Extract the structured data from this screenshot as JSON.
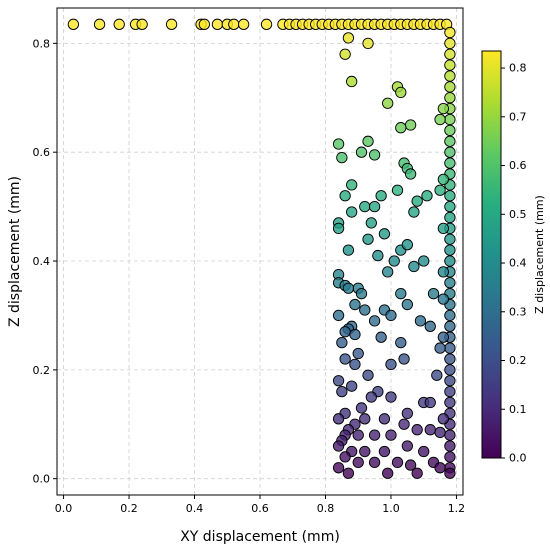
{
  "chart_data": {
    "type": "scatter",
    "title": "",
    "xlabel": "XY displacement (mm)",
    "ylabel": "Z displacement (mm)",
    "xlim": [
      -0.02,
      1.22
    ],
    "ylim": [
      -0.03,
      0.865
    ],
    "grid": true,
    "x_ticks": [
      0.0,
      0.2,
      0.4,
      0.6,
      0.8,
      1.0,
      1.2
    ],
    "y_ticks": [
      0.0,
      0.2,
      0.4,
      0.6,
      0.8
    ],
    "x_tick_labels": [
      "0.0",
      "0.2",
      "0.4",
      "0.6",
      "0.8",
      "1.0",
      "1.2"
    ],
    "y_tick_labels": [
      "0.0",
      "0.2",
      "0.4",
      "0.6",
      "0.8"
    ],
    "colormap": "viridis",
    "marker_edge_color": "#000000",
    "colorbar": {
      "label": "Z displacement (mm)",
      "range": [
        0.0,
        0.835
      ],
      "ticks": [
        0.0,
        0.1,
        0.2,
        0.3,
        0.4,
        0.5,
        0.6,
        0.7,
        0.8
      ],
      "tick_labels": [
        "0.0",
        "0.1",
        "0.2",
        "0.3",
        "0.4",
        "0.5",
        "0.6",
        "0.7",
        "0.8"
      ]
    },
    "points": [
      [
        0.03,
        0.835
      ],
      [
        0.11,
        0.835
      ],
      [
        0.17,
        0.835
      ],
      [
        0.22,
        0.835
      ],
      [
        0.24,
        0.835
      ],
      [
        0.33,
        0.835
      ],
      [
        0.42,
        0.835
      ],
      [
        0.43,
        0.835
      ],
      [
        0.47,
        0.835
      ],
      [
        0.5,
        0.835
      ],
      [
        0.52,
        0.835
      ],
      [
        0.55,
        0.835
      ],
      [
        0.62,
        0.835
      ],
      [
        0.67,
        0.835
      ],
      [
        0.69,
        0.835
      ],
      [
        0.71,
        0.835
      ],
      [
        0.73,
        0.835
      ],
      [
        0.75,
        0.835
      ],
      [
        0.77,
        0.835
      ],
      [
        0.79,
        0.835
      ],
      [
        0.81,
        0.835
      ],
      [
        0.83,
        0.835
      ],
      [
        0.85,
        0.835
      ],
      [
        0.87,
        0.835
      ],
      [
        0.89,
        0.835
      ],
      [
        0.91,
        0.835
      ],
      [
        0.93,
        0.835
      ],
      [
        0.95,
        0.835
      ],
      [
        0.97,
        0.835
      ],
      [
        0.99,
        0.835
      ],
      [
        1.01,
        0.835
      ],
      [
        1.03,
        0.835
      ],
      [
        1.05,
        0.835
      ],
      [
        1.07,
        0.835
      ],
      [
        1.09,
        0.835
      ],
      [
        1.11,
        0.835
      ],
      [
        1.13,
        0.835
      ],
      [
        1.15,
        0.835
      ],
      [
        1.17,
        0.835
      ],
      [
        1.18,
        0.82
      ],
      [
        1.18,
        0.8
      ],
      [
        1.18,
        0.78
      ],
      [
        1.18,
        0.76
      ],
      [
        1.18,
        0.74
      ],
      [
        1.18,
        0.72
      ],
      [
        1.18,
        0.7
      ],
      [
        1.18,
        0.68
      ],
      [
        1.18,
        0.66
      ],
      [
        1.18,
        0.64
      ],
      [
        1.18,
        0.62
      ],
      [
        1.18,
        0.6
      ],
      [
        1.18,
        0.58
      ],
      [
        1.18,
        0.56
      ],
      [
        1.18,
        0.54
      ],
      [
        1.18,
        0.52
      ],
      [
        1.18,
        0.5
      ],
      [
        1.18,
        0.48
      ],
      [
        1.18,
        0.46
      ],
      [
        1.18,
        0.44
      ],
      [
        1.18,
        0.42
      ],
      [
        1.18,
        0.4
      ],
      [
        1.18,
        0.38
      ],
      [
        1.18,
        0.36
      ],
      [
        1.18,
        0.34
      ],
      [
        1.18,
        0.32
      ],
      [
        1.18,
        0.3
      ],
      [
        1.18,
        0.28
      ],
      [
        1.18,
        0.26
      ],
      [
        1.18,
        0.24
      ],
      [
        1.18,
        0.22
      ],
      [
        1.18,
        0.2
      ],
      [
        1.18,
        0.18
      ],
      [
        1.18,
        0.16
      ],
      [
        1.18,
        0.14
      ],
      [
        1.18,
        0.12
      ],
      [
        1.18,
        0.1
      ],
      [
        1.18,
        0.08
      ],
      [
        1.18,
        0.06
      ],
      [
        1.18,
        0.04
      ],
      [
        1.18,
        0.02
      ],
      [
        1.18,
        0.01
      ],
      [
        0.87,
        0.81
      ],
      [
        0.93,
        0.8
      ],
      [
        0.86,
        0.78
      ],
      [
        0.88,
        0.73
      ],
      [
        1.02,
        0.72
      ],
      [
        1.03,
        0.71
      ],
      [
        0.99,
        0.69
      ],
      [
        1.16,
        0.68
      ],
      [
        1.15,
        0.66
      ],
      [
        1.06,
        0.65
      ],
      [
        1.03,
        0.645
      ],
      [
        0.84,
        0.615
      ],
      [
        0.93,
        0.62
      ],
      [
        0.91,
        0.6
      ],
      [
        0.95,
        0.595
      ],
      [
        0.85,
        0.59
      ],
      [
        1.04,
        0.58
      ],
      [
        1.05,
        0.57
      ],
      [
        1.06,
        0.56
      ],
      [
        1.16,
        0.55
      ],
      [
        0.88,
        0.54
      ],
      [
        1.02,
        0.53
      ],
      [
        1.15,
        0.53
      ],
      [
        0.86,
        0.52
      ],
      [
        0.97,
        0.52
      ],
      [
        1.11,
        0.52
      ],
      [
        1.08,
        0.51
      ],
      [
        0.92,
        0.5
      ],
      [
        0.95,
        0.5
      ],
      [
        0.88,
        0.49
      ],
      [
        1.07,
        0.49
      ],
      [
        0.84,
        0.47
      ],
      [
        0.94,
        0.47
      ],
      [
        0.84,
        0.46
      ],
      [
        0.98,
        0.45
      ],
      [
        1.16,
        0.46
      ],
      [
        0.87,
        0.42
      ],
      [
        1.03,
        0.42
      ],
      [
        0.93,
        0.44
      ],
      [
        1.05,
        0.43
      ],
      [
        0.96,
        0.41
      ],
      [
        1.01,
        0.4
      ],
      [
        1.1,
        0.4
      ],
      [
        1.07,
        0.39
      ],
      [
        0.99,
        0.38
      ],
      [
        1.16,
        0.38
      ],
      [
        0.84,
        0.375
      ],
      [
        0.9,
        0.35
      ],
      [
        0.84,
        0.36
      ],
      [
        0.86,
        0.355
      ],
      [
        0.87,
        0.35
      ],
      [
        0.91,
        0.34
      ],
      [
        1.13,
        0.34
      ],
      [
        1.03,
        0.34
      ],
      [
        0.89,
        0.32
      ],
      [
        1.16,
        0.33
      ],
      [
        0.92,
        0.31
      ],
      [
        0.98,
        0.31
      ],
      [
        1.05,
        0.32
      ],
      [
        1.0,
        0.3
      ],
      [
        0.84,
        0.3
      ],
      [
        0.88,
        0.28
      ],
      [
        0.95,
        0.29
      ],
      [
        0.87,
        0.275
      ],
      [
        0.86,
        0.27
      ],
      [
        0.89,
        0.265
      ],
      [
        1.09,
        0.29
      ],
      [
        1.12,
        0.28
      ],
      [
        0.97,
        0.26
      ],
      [
        0.85,
        0.25
      ],
      [
        1.03,
        0.25
      ],
      [
        1.16,
        0.26
      ],
      [
        1.15,
        0.24
      ],
      [
        0.9,
        0.23
      ],
      [
        0.86,
        0.22
      ],
      [
        1.0,
        0.21
      ],
      [
        0.89,
        0.21
      ],
      [
        1.04,
        0.22
      ],
      [
        0.93,
        0.19
      ],
      [
        1.14,
        0.19
      ],
      [
        0.84,
        0.18
      ],
      [
        0.88,
        0.17
      ],
      [
        0.85,
        0.16
      ],
      [
        0.96,
        0.16
      ],
      [
        0.94,
        0.15
      ],
      [
        1.0,
        0.15
      ],
      [
        1.1,
        0.14
      ],
      [
        1.12,
        0.14
      ],
      [
        0.91,
        0.13
      ],
      [
        0.86,
        0.12
      ],
      [
        0.84,
        0.11
      ],
      [
        0.92,
        0.11
      ],
      [
        0.98,
        0.11
      ],
      [
        1.05,
        0.12
      ],
      [
        1.16,
        0.11
      ],
      [
        0.89,
        0.1
      ],
      [
        1.04,
        0.1
      ],
      [
        1.12,
        0.09
      ],
      [
        0.87,
        0.09
      ],
      [
        0.86,
        0.08
      ],
      [
        0.85,
        0.07
      ],
      [
        0.9,
        0.08
      ],
      [
        0.95,
        0.08
      ],
      [
        1.0,
        0.08
      ],
      [
        1.08,
        0.09
      ],
      [
        1.15,
        0.085
      ],
      [
        0.84,
        0.06
      ],
      [
        0.88,
        0.05
      ],
      [
        0.92,
        0.05
      ],
      [
        0.98,
        0.05
      ],
      [
        1.05,
        0.06
      ],
      [
        1.1,
        0.05
      ],
      [
        0.86,
        0.04
      ],
      [
        0.9,
        0.03
      ],
      [
        0.95,
        0.03
      ],
      [
        1.02,
        0.03
      ],
      [
        1.06,
        0.025
      ],
      [
        1.13,
        0.03
      ],
      [
        0.84,
        0.02
      ],
      [
        0.87,
        0.01
      ],
      [
        0.99,
        0.01
      ],
      [
        1.08,
        0.01
      ],
      [
        1.15,
        0.02
      ]
    ]
  }
}
